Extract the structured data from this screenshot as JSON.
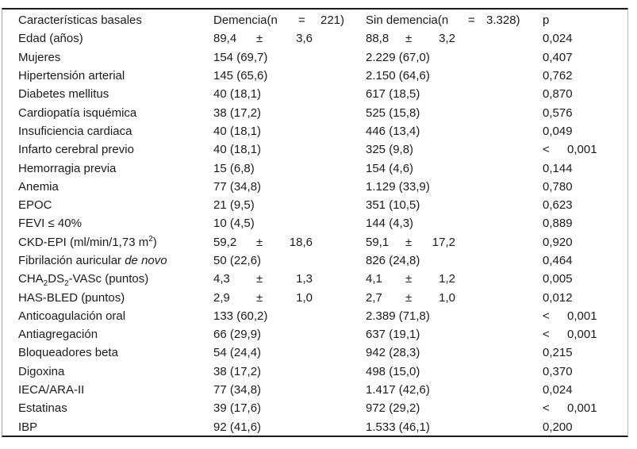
{
  "table": {
    "header": {
      "col1": "Características basales",
      "col2": {
        "pre": "Demencia(n",
        "eq": "=",
        "n": "221)"
      },
      "col3": {
        "pre": "Sin demencia(n",
        "eq": "=",
        "n": "3.328)"
      },
      "col4": "p"
    },
    "rows": [
      {
        "label": "Edad (años)",
        "demencia": {
          "mean": "89,4",
          "pm": "±",
          "sd": "3,6"
        },
        "sin_demencia": {
          "mean": "88,8",
          "pm": "±",
          "sd": "3,2"
        },
        "p": {
          "value": "0,024"
        }
      },
      {
        "label": "Mujeres",
        "demencia": {
          "text": "154 (69,7)"
        },
        "sin_demencia": {
          "text": "2.229 (67,0)"
        },
        "p": {
          "value": "0,407"
        }
      },
      {
        "label": "Hipertensión arterial",
        "demencia": {
          "text": "145 (65,6)"
        },
        "sin_demencia": {
          "text": "2.150 (64,6)"
        },
        "p": {
          "value": "0,762"
        }
      },
      {
        "label": "Diabetes mellitus",
        "demencia": {
          "text": "40 (18,1)"
        },
        "sin_demencia": {
          "text": "617 (18,5)"
        },
        "p": {
          "value": "0,870"
        }
      },
      {
        "label": "Cardiopatía isquémica",
        "demencia": {
          "text": "38 (17,2)"
        },
        "sin_demencia": {
          "text": "525 (15,8)"
        },
        "p": {
          "value": "0,576"
        }
      },
      {
        "label": "Insuficiencia cardiaca",
        "demencia": {
          "text": "40 (18,1)"
        },
        "sin_demencia": {
          "text": "446 (13,4)"
        },
        "p": {
          "value": "0,049"
        }
      },
      {
        "label": "Infarto cerebral previo",
        "demencia": {
          "text": "40 (18,1)"
        },
        "sin_demencia": {
          "text": "325 (9,8)"
        },
        "p": {
          "prefix": "<",
          "value": "0,001"
        }
      },
      {
        "label": "Hemorragia previa",
        "demencia": {
          "text": "15 (6,8)"
        },
        "sin_demencia": {
          "text": "154 (4,6)"
        },
        "p": {
          "value": "0,144"
        }
      },
      {
        "label": "Anemia",
        "demencia": {
          "text": "77 (34,8)"
        },
        "sin_demencia": {
          "text": "1.129 (33,9)"
        },
        "p": {
          "value": "0,780"
        }
      },
      {
        "label": "EPOC",
        "demencia": {
          "text": "21 (9,5)"
        },
        "sin_demencia": {
          "text": "351 (10,5)"
        },
        "p": {
          "value": "0,623"
        }
      },
      {
        "label": "FEVI ≤ 40%",
        "demencia": {
          "text": "10 (4,5)"
        },
        "sin_demencia": {
          "text": "144 (4,3)"
        },
        "p": {
          "value": "0,889"
        }
      },
      {
        "label_parts": [
          {
            "t": "CKD-EPI (ml/min/1,73 m"
          },
          {
            "t": "2",
            "style": "sup"
          },
          {
            "t": ")"
          }
        ],
        "demencia": {
          "mean": "59,2",
          "pm": "±",
          "sd": "18,6"
        },
        "sin_demencia": {
          "mean": "59,1",
          "pm": "±",
          "sd": "17,2"
        },
        "p": {
          "value": "0,920"
        }
      },
      {
        "label_parts": [
          {
            "t": "Fibrilación auricular "
          },
          {
            "t": "de novo",
            "style": "italic"
          }
        ],
        "demencia": {
          "text": "50 (22,6)"
        },
        "sin_demencia": {
          "text": "826 (24,8)"
        },
        "p": {
          "value": "0,464"
        }
      },
      {
        "label_parts": [
          {
            "t": "CHA"
          },
          {
            "t": "2",
            "style": "sub"
          },
          {
            "t": "DS"
          },
          {
            "t": "2",
            "style": "sub"
          },
          {
            "t": "-VASc (puntos)"
          }
        ],
        "demencia": {
          "mean": "4,3",
          "pm": "±",
          "sd": "1,3"
        },
        "sin_demencia": {
          "mean": "4,1",
          "pm": "±",
          "sd": "1,2"
        },
        "p": {
          "value": "0,005"
        }
      },
      {
        "label": "HAS-BLED (puntos)",
        "demencia": {
          "mean": "2,9",
          "pm": "±",
          "sd": "1,0"
        },
        "sin_demencia": {
          "mean": "2,7",
          "pm": "±",
          "sd": "1,0"
        },
        "p": {
          "value": "0,012"
        }
      },
      {
        "label": "Anticoagulación oral",
        "demencia": {
          "text": "133 (60,2)"
        },
        "sin_demencia": {
          "text": "2.389 (71,8)"
        },
        "p": {
          "prefix": "<",
          "value": "0,001"
        }
      },
      {
        "label": "Antiagregación",
        "demencia": {
          "text": "66 (29,9)"
        },
        "sin_demencia": {
          "text": "637 (19,1)"
        },
        "p": {
          "prefix": "<",
          "value": "0,001"
        }
      },
      {
        "label": "Bloqueadores beta",
        "demencia": {
          "text": "54 (24,4)"
        },
        "sin_demencia": {
          "text": "942 (28,3)"
        },
        "p": {
          "value": "0,215"
        }
      },
      {
        "label": "Digoxina",
        "demencia": {
          "text": "38 (17,2)"
        },
        "sin_demencia": {
          "text": "498 (15,0)"
        },
        "p": {
          "value": "0,370"
        }
      },
      {
        "label": "IECA/ARA-II",
        "demencia": {
          "text": "77 (34,8)"
        },
        "sin_demencia": {
          "text": "1.417 (42,6)"
        },
        "p": {
          "value": "0,024"
        }
      },
      {
        "label": "Estatinas",
        "demencia": {
          "text": "39 (17,6)"
        },
        "sin_demencia": {
          "text": "972 (29,2)"
        },
        "p": {
          "prefix": "<",
          "value": "0,001"
        }
      },
      {
        "label": "IBP",
        "demencia": {
          "text": "92 (41,6)"
        },
        "sin_demencia": {
          "text": "1.533 (46,1)"
        },
        "p": {
          "value": "0,200"
        }
      }
    ],
    "colors": {
      "text": "#1b1b1b",
      "rule": "#1c1c1c",
      "frame_side": "#a6a6a6",
      "background": "#ffffff"
    }
  }
}
